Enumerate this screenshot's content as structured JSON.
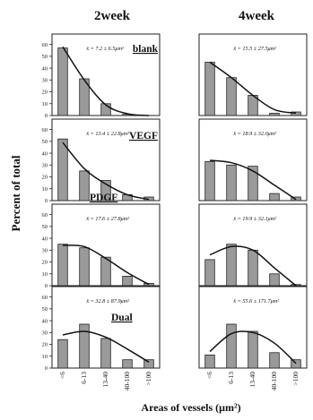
{
  "chart_data": {
    "type": "bar",
    "col_titles": [
      "2week",
      "4week"
    ],
    "ylabel": "Percent of total",
    "xlabel": "Areas of vessels (μm²)",
    "categories": [
      "<6",
      "6-13",
      "13-40",
      "40-100",
      ">100"
    ],
    "yticks": [
      0,
      10,
      20,
      30,
      40,
      50,
      60
    ],
    "ylim": [
      0,
      65
    ],
    "panels": [
      {
        "row_label": "blank",
        "column": "2week",
        "stat": "x̄ = 7.2 ± 6.5μm²",
        "values": [
          57,
          31,
          10,
          1,
          0
        ],
        "fit": [
          58,
          30,
          9,
          1.5,
          0
        ]
      },
      {
        "row_label": "blank",
        "column": "4week",
        "stat": "x̄ = 15.5 ± 27.5μm²",
        "values": [
          45,
          32,
          17,
          2,
          3
        ],
        "fit": [
          45,
          32,
          17,
          5,
          2
        ]
      },
      {
        "row_label": "VEGF",
        "column": "2week",
        "stat": "x̄ = 13.4 ± 22.8μm²",
        "values": [
          52,
          25,
          17,
          5,
          3
        ],
        "fit": [
          49,
          27,
          14,
          5,
          1
        ]
      },
      {
        "row_label": "VEGF",
        "column": "4week",
        "stat": "x̄ = 18.9 ± 32.0μm²",
        "values": [
          33,
          30,
          29,
          6,
          3
        ],
        "fit": [
          34,
          32,
          25,
          13,
          1
        ]
      },
      {
        "row_label": "PDGF",
        "column": "2week",
        "stat": "x̄ = 17.6 ± 27.8μm²",
        "values": [
          35,
          32,
          24,
          8,
          2
        ],
        "fit": [
          34,
          33,
          23,
          11,
          1
        ]
      },
      {
        "row_label": "PDGF",
        "column": "4week",
        "stat": "x̄ = 19.9 ± 32.1μm²",
        "values": [
          22,
          35,
          30,
          10,
          1
        ],
        "fit": [
          26,
          33,
          30,
          15,
          0
        ]
      },
      {
        "row_label": "Dual",
        "column": "2week",
        "stat": "x̄ = 32.8 ± 87.9μm²",
        "values": [
          24,
          37,
          25,
          7,
          7
        ],
        "fit": [
          28,
          31,
          26,
          16,
          5
        ]
      },
      {
        "row_label": "Dual",
        "column": "4week",
        "stat": "x̄ = 55.6 ± 171.7μm²",
        "values": [
          11,
          37,
          31,
          13,
          7
        ],
        "fit": [
          14,
          29,
          30,
          21,
          4
        ]
      }
    ],
    "grid": false,
    "bar_color": "#9a9a9a"
  }
}
